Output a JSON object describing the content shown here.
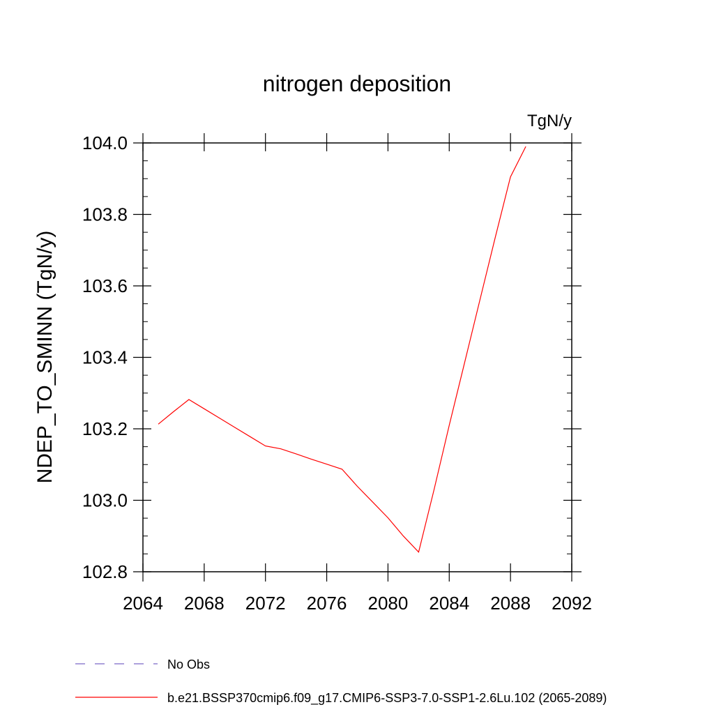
{
  "chart_data": {
    "type": "line",
    "title": "nitrogen deposition",
    "units_label": "TgN/y",
    "ylabel": "NDEP_TO_SMINN  (TgN/y)",
    "xlabel": "",
    "xlim": [
      2064,
      2092
    ],
    "ylim": [
      102.8,
      104.0
    ],
    "x_ticks": [
      2064,
      2068,
      2072,
      2076,
      2080,
      2084,
      2088,
      2092
    ],
    "x_tick_labels": [
      "2064",
      "2068",
      "2072",
      "2076",
      "2080",
      "2084",
      "2088",
      "2092"
    ],
    "y_ticks": [
      102.8,
      103.0,
      103.2,
      103.4,
      103.6,
      103.8,
      104.0
    ],
    "y_tick_labels": [
      "102.8",
      "103.0",
      "103.2",
      "103.4",
      "103.6",
      "103.8",
      "104.0"
    ],
    "grid": false,
    "legend_position": "bottom",
    "series": [
      {
        "name": "b.e21.BSSP370cmip6.f09_g17.CMIP6-SSP3-7.0-SSP1-2.6Lu.102 (2065-2089)",
        "color": "#ff0000",
        "style": "solid",
        "x": [
          2065,
          2066,
          2067,
          2068,
          2069,
          2070,
          2071,
          2072,
          2073,
          2074,
          2075,
          2076,
          2077,
          2078,
          2079,
          2080,
          2081,
          2082,
          2083,
          2084,
          2085,
          2086,
          2087,
          2088,
          2089
        ],
        "y": [
          103.213,
          103.248,
          103.282,
          103.256,
          103.23,
          103.204,
          103.178,
          103.152,
          103.144,
          103.13,
          103.115,
          103.101,
          103.087,
          103.039,
          102.995,
          102.951,
          102.9,
          102.855,
          103.028,
          103.21,
          103.385,
          103.56,
          103.735,
          103.905,
          103.99
        ]
      },
      {
        "name": "No Obs",
        "color": "#7b68c8",
        "style": "dashed",
        "x": [],
        "y": []
      }
    ]
  }
}
